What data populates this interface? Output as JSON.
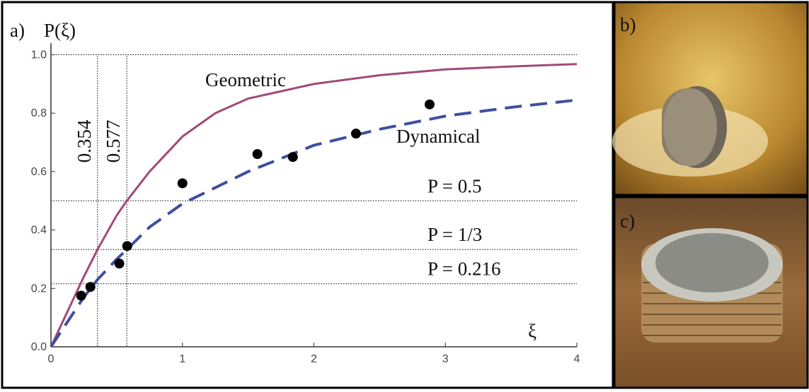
{
  "chart_data": {
    "type": "line",
    "panel_labels": [
      "a)",
      "b)",
      "c)"
    ],
    "ylabel": "P(ξ)",
    "xlabel": "ξ",
    "xlim": [
      0,
      4
    ],
    "ylim": [
      0,
      1.04
    ],
    "xticks": [
      0,
      1,
      2,
      3,
      4
    ],
    "yticks": [
      {
        "value": 0,
        "label": "0.0"
      },
      {
        "value": 0.2,
        "label": "0.2"
      },
      {
        "value": 0.4,
        "label": "0.4"
      },
      {
        "value": 0.6,
        "label": "0.6"
      },
      {
        "value": 0.8,
        "label": "0.8"
      },
      {
        "value": 1,
        "label": "1.0"
      }
    ],
    "hlines": [
      {
        "value": 1
      },
      {
        "value": 0.5,
        "label": "P = 0.5"
      },
      {
        "value": 0.3333,
        "label": "P = 1/3"
      },
      {
        "value": 0.216,
        "label": "P = 0.216"
      }
    ],
    "vlines": [
      0.354,
      0.577
    ],
    "series": [
      {
        "name": "Geometric",
        "color": "#a04a78",
        "dashed": false,
        "x": [
          0,
          0.25,
          0.354,
          0.5,
          0.577,
          0.75,
          1,
          1.25,
          1.5,
          2,
          2.5,
          3,
          3.5,
          4
        ],
        "values": [
          0,
          0.24,
          0.333,
          0.45,
          0.5,
          0.6,
          0.72,
          0.8,
          0.85,
          0.9,
          0.93,
          0.95,
          0.96,
          0.968
        ]
      },
      {
        "name": "Dynamical",
        "color": "#3f4fa0",
        "dashed": true,
        "x": [
          0,
          0.25,
          0.354,
          0.5,
          0.577,
          0.75,
          1,
          1.5,
          2,
          2.5,
          3,
          3.5,
          4
        ],
        "values": [
          0,
          0.17,
          0.23,
          0.3,
          0.333,
          0.41,
          0.49,
          0.6,
          0.69,
          0.745,
          0.79,
          0.82,
          0.845
        ]
      }
    ],
    "points": {
      "x": [
        0.23,
        0.3,
        0.52,
        0.58,
        1.0,
        1.57,
        1.84,
        2.32,
        2.88
      ],
      "values": [
        0.175,
        0.205,
        0.285,
        0.345,
        0.56,
        0.66,
        0.65,
        0.73,
        0.83
      ],
      "color": "#000000"
    }
  }
}
